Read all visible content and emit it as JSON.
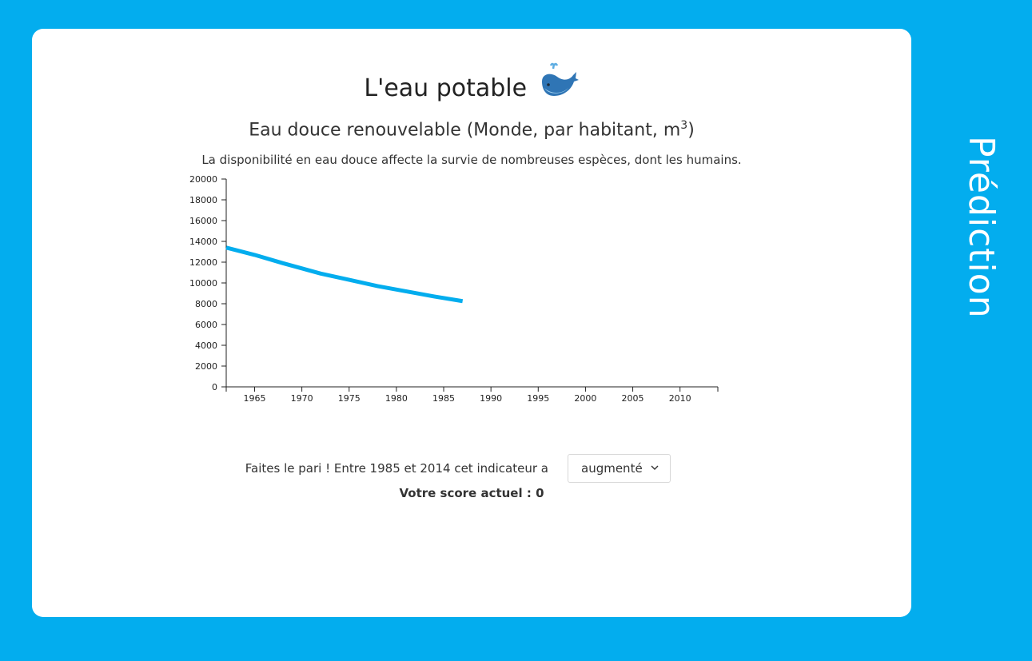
{
  "page": {
    "title": "L'eau potable",
    "title_icon": "whale-icon",
    "subtitle": "Eau douce renouvelable (Monde, par habitant, m",
    "subtitle_sup": "3",
    "subtitle_end": ")",
    "description": "La disponibilité en eau douce affecte la survie de nombreuses espèces, dont les humains.",
    "side_label": "Prédiction"
  },
  "prediction": {
    "prompt": "Faites le pari ! Entre 1985 et 2014 cet indicateur a",
    "selected": "augmenté",
    "score_label": "Votre score actuel : 0"
  },
  "colors": {
    "background": "#03adee",
    "line": "#03adee",
    "card": "#ffffff"
  },
  "chart_data": {
    "type": "line",
    "title": "",
    "xlabel": "",
    "ylabel": "",
    "xlim": [
      1962,
      2014
    ],
    "ylim": [
      0,
      20000
    ],
    "x_ticks": [
      1965,
      1970,
      1975,
      1980,
      1985,
      1990,
      1995,
      2000,
      2005,
      2010
    ],
    "y_ticks": [
      0,
      2000,
      4000,
      6000,
      8000,
      10000,
      12000,
      14000,
      16000,
      18000,
      20000
    ],
    "grid": false,
    "series": [
      {
        "x": [
          1962,
          1965,
          1968,
          1972,
          1975,
          1978,
          1981,
          1984,
          1987
        ],
        "y": [
          13400,
          12700,
          11900,
          10900,
          10300,
          9700,
          9200,
          8700,
          8250
        ]
      }
    ]
  }
}
